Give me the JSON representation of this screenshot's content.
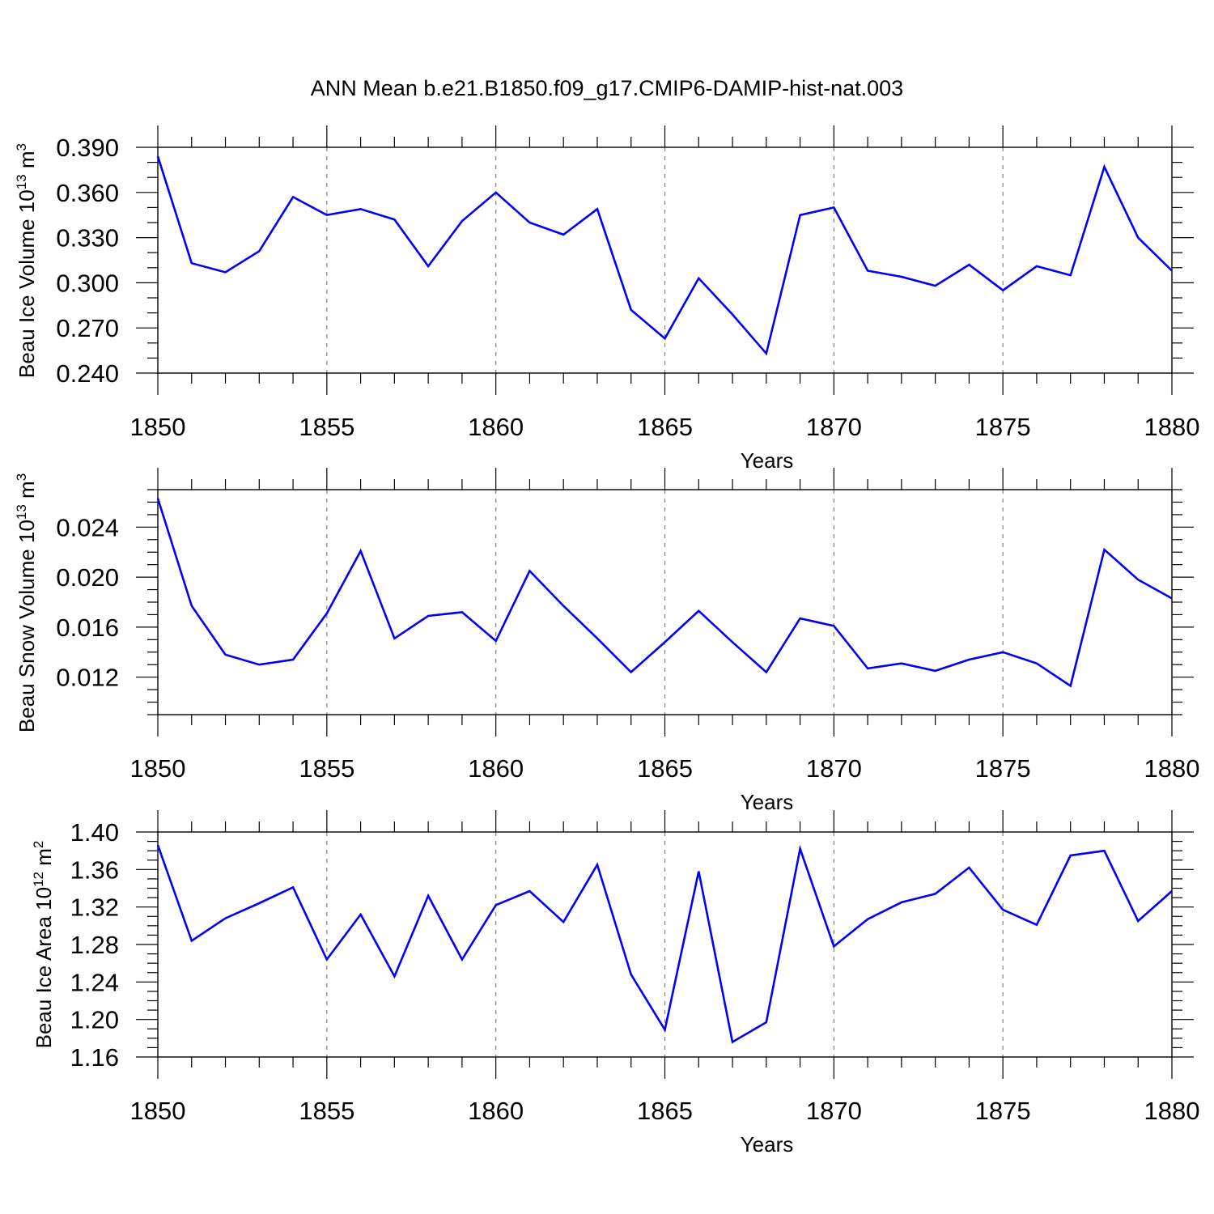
{
  "title": "ANN Mean b.e21.B1850.f09_g17.CMIP6-DAMIP-hist-nat.003",
  "colors": {
    "series": "#0000ff",
    "axis": "#000000",
    "grid": "#808080"
  },
  "chart_data": [
    {
      "type": "line",
      "ylabel_prefix": "Beau Ice Volume 10",
      "ylabel_exp": "13",
      "ylabel_unit": " m",
      "ylabel_unit_exp": "3",
      "xlabel": "Years",
      "xlim": [
        1850,
        1880
      ],
      "ylim": [
        0.24,
        0.39
      ],
      "yticks": [
        0.24,
        0.27,
        0.3,
        0.33,
        0.36,
        0.39
      ],
      "ytick_labels": [
        "0.240",
        "0.270",
        "0.300",
        "0.330",
        "0.360",
        "0.390"
      ],
      "yminor": 0.01,
      "xticks": [
        1850,
        1855,
        1860,
        1865,
        1870,
        1875,
        1880
      ],
      "xtick_labels": [
        "1850",
        "1855",
        "1860",
        "1865",
        "1870",
        "1875",
        "1880"
      ],
      "x": [
        1850,
        1851,
        1852,
        1853,
        1854,
        1855,
        1856,
        1857,
        1858,
        1859,
        1860,
        1861,
        1862,
        1863,
        1864,
        1865,
        1866,
        1867,
        1868,
        1869,
        1870,
        1871,
        1872,
        1873,
        1874,
        1875,
        1876,
        1877,
        1878,
        1879,
        1880
      ],
      "values": [
        0.384,
        0.313,
        0.307,
        0.321,
        0.357,
        0.345,
        0.349,
        0.342,
        0.311,
        0.341,
        0.36,
        0.34,
        0.332,
        0.349,
        0.282,
        0.263,
        0.303,
        0.279,
        0.253,
        0.345,
        0.35,
        0.308,
        0.304,
        0.298,
        0.312,
        0.295,
        0.311,
        0.305,
        0.377,
        0.33,
        0.308
      ]
    },
    {
      "type": "line",
      "ylabel_prefix": "Beau Snow Volume 10",
      "ylabel_exp": "13",
      "ylabel_unit": " m",
      "ylabel_unit_exp": "3",
      "xlabel": "Years",
      "xlim": [
        1850,
        1880
      ],
      "ylim": [
        0.009,
        0.027
      ],
      "yticks": [
        0.012,
        0.016,
        0.02,
        0.024
      ],
      "ytick_labels": [
        "0.012",
        "0.016",
        "0.020",
        "0.024"
      ],
      "yminor": 0.001,
      "xticks": [
        1850,
        1855,
        1860,
        1865,
        1870,
        1875,
        1880
      ],
      "xtick_labels": [
        "1850",
        "1855",
        "1860",
        "1865",
        "1870",
        "1875",
        "1880"
      ],
      "x": [
        1850,
        1851,
        1852,
        1853,
        1854,
        1855,
        1856,
        1857,
        1858,
        1859,
        1860,
        1861,
        1862,
        1863,
        1864,
        1865,
        1866,
        1867,
        1868,
        1869,
        1870,
        1871,
        1872,
        1873,
        1874,
        1875,
        1876,
        1877,
        1878,
        1879,
        1880
      ],
      "values": [
        0.0263,
        0.0177,
        0.0138,
        0.013,
        0.0134,
        0.0171,
        0.0221,
        0.0151,
        0.0169,
        0.0172,
        0.0149,
        0.0205,
        0.0177,
        0.0151,
        0.0124,
        0.0148,
        0.0173,
        0.0148,
        0.0124,
        0.0167,
        0.0161,
        0.0127,
        0.0131,
        0.0125,
        0.0134,
        0.014,
        0.0131,
        0.0113,
        0.0222,
        0.0198,
        0.0183
      ]
    },
    {
      "type": "line",
      "ylabel_prefix": "Beau Ice Area 10",
      "ylabel_exp": "12",
      "ylabel_unit": " m",
      "ylabel_unit_exp": "2",
      "xlabel": "Years",
      "xlim": [
        1850,
        1880
      ],
      "ylim": [
        1.16,
        1.4
      ],
      "yticks": [
        1.16,
        1.2,
        1.24,
        1.28,
        1.32,
        1.36,
        1.4
      ],
      "ytick_labels": [
        "1.16",
        "1.20",
        "1.24",
        "1.28",
        "1.32",
        "1.36",
        "1.40"
      ],
      "yminor": 0.01,
      "xticks": [
        1850,
        1855,
        1860,
        1865,
        1870,
        1875,
        1880
      ],
      "xtick_labels": [
        "1850",
        "1855",
        "1860",
        "1865",
        "1870",
        "1875",
        "1880"
      ],
      "x": [
        1850,
        1851,
        1852,
        1853,
        1854,
        1855,
        1856,
        1857,
        1858,
        1859,
        1860,
        1861,
        1862,
        1863,
        1864,
        1865,
        1866,
        1867,
        1868,
        1869,
        1870,
        1871,
        1872,
        1873,
        1874,
        1875,
        1876,
        1877,
        1878,
        1879,
        1880
      ],
      "values": [
        1.386,
        1.284,
        1.308,
        1.324,
        1.341,
        1.264,
        1.312,
        1.246,
        1.332,
        1.264,
        1.322,
        1.337,
        1.304,
        1.365,
        1.248,
        1.189,
        1.358,
        1.176,
        1.197,
        1.382,
        1.278,
        1.307,
        1.325,
        1.334,
        1.362,
        1.317,
        1.301,
        1.375,
        1.38,
        1.305,
        1.337
      ]
    }
  ]
}
